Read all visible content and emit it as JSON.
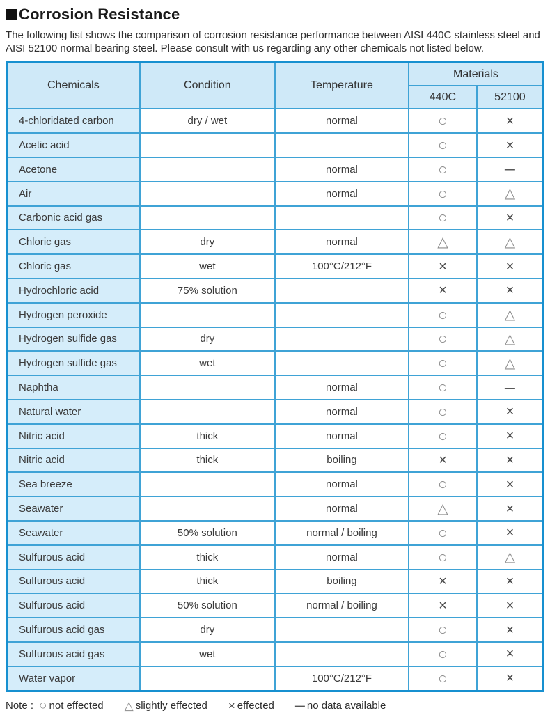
{
  "page": {
    "title": "Corrosion Resistance",
    "intro": "The following list shows the comparison of corrosion resistance performance between AISI 440C stainless steel and AISI 52100 normal bearing steel. Please consult with us regarding any other chemicals not listed below."
  },
  "colors": {
    "table_outer_border": "#1790d0",
    "table_grid": "#3fa3d6",
    "header_fill": "#cfe9f8",
    "chemical_column_fill": "#d5edfa",
    "symbol_gray": "#8b8b8b",
    "symbol_dark": "#474747"
  },
  "symbols": {
    "circle": "○",
    "triangle": "△",
    "cross": "×",
    "dash": "—",
    "none": ""
  },
  "table": {
    "headers": {
      "chemicals": "Chemicals",
      "condition": "Condition",
      "temperature": "Temperature",
      "materials": "Materials",
      "m440c": "440C",
      "m52100": "52100"
    },
    "rows": [
      {
        "chemical": "4-chloridated carbon",
        "condition": "dry / wet",
        "temperature": "normal",
        "c440": "circle",
        "c52100": "cross"
      },
      {
        "chemical": "Acetic acid",
        "condition": "",
        "temperature": "",
        "c440": "circle",
        "c52100": "cross"
      },
      {
        "chemical": "Acetone",
        "condition": "",
        "temperature": "normal",
        "c440": "circle",
        "c52100": "dash"
      },
      {
        "chemical": "Air",
        "condition": "",
        "temperature": "normal",
        "c440": "circle",
        "c52100": "triangle"
      },
      {
        "chemical": "Carbonic acid gas",
        "condition": "",
        "temperature": "",
        "c440": "circle",
        "c52100": "cross"
      },
      {
        "chemical": "Chloric gas",
        "condition": "dry",
        "temperature": "normal",
        "c440": "triangle",
        "c52100": "triangle"
      },
      {
        "chemical": "Chloric gas",
        "condition": "wet",
        "temperature": "100°C/212°F",
        "c440": "cross",
        "c52100": "cross"
      },
      {
        "chemical": "Hydrochloric acid",
        "condition": "75% solution",
        "temperature": "",
        "c440": "cross",
        "c52100": "cross"
      },
      {
        "chemical": "Hydrogen peroxide",
        "condition": "",
        "temperature": "",
        "c440": "circle",
        "c52100": "triangle"
      },
      {
        "chemical": "Hydrogen sulfide gas",
        "condition": "dry",
        "temperature": "",
        "c440": "circle",
        "c52100": "triangle"
      },
      {
        "chemical": "Hydrogen sulfide gas",
        "condition": "wet",
        "temperature": "",
        "c440": "circle",
        "c52100": "triangle"
      },
      {
        "chemical": "Naphtha",
        "condition": "",
        "temperature": "normal",
        "c440": "circle",
        "c52100": "dash"
      },
      {
        "chemical": "Natural water",
        "condition": "",
        "temperature": "normal",
        "c440": "circle",
        "c52100": "cross"
      },
      {
        "chemical": "Nitric acid",
        "condition": "thick",
        "temperature": "normal",
        "c440": "circle",
        "c52100": "cross"
      },
      {
        "chemical": "Nitric acid",
        "condition": "thick",
        "temperature": "boiling",
        "c440": "cross",
        "c52100": "cross"
      },
      {
        "chemical": "Sea breeze",
        "condition": "",
        "temperature": "normal",
        "c440": "circle",
        "c52100": "cross"
      },
      {
        "chemical": "Seawater",
        "condition": "",
        "temperature": "normal",
        "c440": "triangle",
        "c52100": "cross"
      },
      {
        "chemical": "Seawater",
        "condition": "50% solution",
        "temperature": "normal / boiling",
        "c440": "circle",
        "c52100": "cross"
      },
      {
        "chemical": "Sulfurous acid",
        "condition": "thick",
        "temperature": "normal",
        "c440": "circle",
        "c52100": "triangle"
      },
      {
        "chemical": "Sulfurous acid",
        "condition": "thick",
        "temperature": "boiling",
        "c440": "cross",
        "c52100": "cross"
      },
      {
        "chemical": "Sulfurous acid",
        "condition": "50% solution",
        "temperature": "normal / boiling",
        "c440": "cross",
        "c52100": "cross"
      },
      {
        "chemical": "Sulfurous acid gas",
        "condition": "dry",
        "temperature": "",
        "c440": "circle",
        "c52100": "cross"
      },
      {
        "chemical": "Sulfurous acid gas",
        "condition": "wet",
        "temperature": "",
        "c440": "circle",
        "c52100": "cross"
      },
      {
        "chemical": "Water vapor",
        "condition": "",
        "temperature": "100°C/212°F",
        "c440": "circle",
        "c52100": "cross"
      }
    ]
  },
  "note": {
    "label": "Note :",
    "items": [
      {
        "symbol": "circle",
        "text": "not effected"
      },
      {
        "symbol": "triangle",
        "text": "slightly effected"
      },
      {
        "symbol": "cross",
        "text": "effected"
      },
      {
        "symbol": "dash",
        "text": "no data available"
      }
    ]
  }
}
